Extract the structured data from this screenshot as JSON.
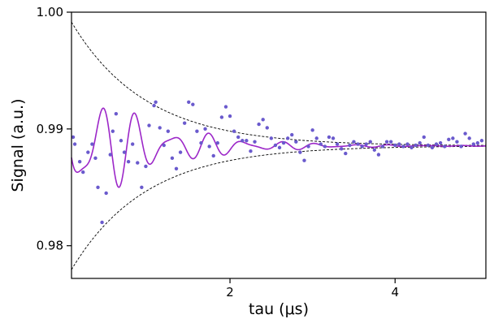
{
  "chart_data": {
    "type": "scatter",
    "title": "",
    "xlabel": "tau (μs)",
    "ylabel": "Signal (a.u.)",
    "xlim": [
      0.08,
      5.1
    ],
    "ylim": [
      0.9772,
      1.0
    ],
    "x_ticks": [
      {
        "value": 2,
        "label": "2"
      },
      {
        "value": 4,
        "label": "4"
      }
    ],
    "y_ticks": [
      {
        "value": 0.98,
        "label": "0.98"
      },
      {
        "value": 0.99,
        "label": "0.99"
      },
      {
        "value": 1.0,
        "label": "1.00"
      }
    ],
    "grid": false,
    "legend": "none",
    "colors": {
      "points": "#6a5acd",
      "fit_line": "#9c27c8",
      "envelope": "#000000"
    },
    "envelope": {
      "center": 0.98855,
      "amplitude_at_x0": 0.0106,
      "decay_time_us": 0.9
    },
    "fit_model": {
      "offset": 0.98855,
      "components": [
        {
          "amp": 0.0046,
          "freq_mhz": 2.28,
          "phase_rad": 0.2
        },
        {
          "amp": 0.0023,
          "freq_mhz": 3.25,
          "phase_rad": 2.0
        }
      ],
      "decay_time_us": 0.9
    },
    "series": [
      {
        "values": [
          [
            0.1,
            0.9893
          ],
          [
            0.12,
            0.9887
          ],
          [
            0.18,
            0.9872
          ],
          [
            0.22,
            0.9863
          ],
          [
            0.28,
            0.988
          ],
          [
            0.33,
            0.9887
          ],
          [
            0.37,
            0.9875
          ],
          [
            0.4,
            0.985
          ],
          [
            0.45,
            0.982
          ],
          [
            0.5,
            0.9845
          ],
          [
            0.55,
            0.9878
          ],
          [
            0.58,
            0.9898
          ],
          [
            0.62,
            0.9913
          ],
          [
            0.68,
            0.989
          ],
          [
            0.72,
            0.988
          ],
          [
            0.77,
            0.9872
          ],
          [
            0.82,
            0.9887
          ],
          [
            0.88,
            0.9871
          ],
          [
            0.93,
            0.985
          ],
          [
            0.98,
            0.9868
          ],
          [
            1.02,
            0.9903
          ],
          [
            1.08,
            0.992
          ],
          [
            1.1,
            0.9923
          ],
          [
            1.15,
            0.9901
          ],
          [
            1.2,
            0.9886
          ],
          [
            1.25,
            0.9898
          ],
          [
            1.3,
            0.9875
          ],
          [
            1.35,
            0.9866
          ],
          [
            1.4,
            0.988
          ],
          [
            1.45,
            0.9905
          ],
          [
            1.5,
            0.9923
          ],
          [
            1.55,
            0.9921
          ],
          [
            1.6,
            0.9898
          ],
          [
            1.65,
            0.9888
          ],
          [
            1.7,
            0.99
          ],
          [
            1.75,
            0.9885
          ],
          [
            1.8,
            0.9877
          ],
          [
            1.85,
            0.9888
          ],
          [
            1.9,
            0.991
          ],
          [
            1.95,
            0.9919
          ],
          [
            2.0,
            0.9911
          ],
          [
            2.05,
            0.9898
          ],
          [
            2.1,
            0.9893
          ],
          [
            2.15,
            0.989
          ],
          [
            2.2,
            0.989
          ],
          [
            2.25,
            0.9881
          ],
          [
            2.3,
            0.9889
          ],
          [
            2.35,
            0.9904
          ],
          [
            2.4,
            0.9908
          ],
          [
            2.45,
            0.9901
          ],
          [
            2.5,
            0.9892
          ],
          [
            2.55,
            0.9886
          ],
          [
            2.6,
            0.9884
          ],
          [
            2.65,
            0.9888
          ],
          [
            2.7,
            0.9892
          ],
          [
            2.75,
            0.9895
          ],
          [
            2.8,
            0.9889
          ],
          [
            2.85,
            0.988
          ],
          [
            2.9,
            0.9873
          ],
          [
            2.95,
            0.9885
          ],
          [
            3.0,
            0.9899
          ],
          [
            3.05,
            0.9892
          ],
          [
            3.1,
            0.9887
          ],
          [
            3.15,
            0.9885
          ],
          [
            3.2,
            0.9893
          ],
          [
            3.25,
            0.9892
          ],
          [
            3.3,
            0.9887
          ],
          [
            3.35,
            0.9883
          ],
          [
            3.4,
            0.9879
          ],
          [
            3.45,
            0.9886
          ],
          [
            3.5,
            0.9889
          ],
          [
            3.55,
            0.9887
          ],
          [
            3.6,
            0.9885
          ],
          [
            3.65,
            0.9887
          ],
          [
            3.7,
            0.9889
          ],
          [
            3.75,
            0.9882
          ],
          [
            3.8,
            0.9878
          ],
          [
            3.85,
            0.9885
          ],
          [
            3.9,
            0.9889
          ],
          [
            3.95,
            0.9889
          ],
          [
            4.0,
            0.9886
          ],
          [
            4.05,
            0.9887
          ],
          [
            4.1,
            0.9885
          ],
          [
            4.15,
            0.9887
          ],
          [
            4.2,
            0.9884
          ],
          [
            4.25,
            0.9886
          ],
          [
            4.3,
            0.9888
          ],
          [
            4.35,
            0.9893
          ],
          [
            4.4,
            0.9886
          ],
          [
            4.45,
            0.9884
          ],
          [
            4.5,
            0.9887
          ],
          [
            4.55,
            0.9888
          ],
          [
            4.6,
            0.9885
          ],
          [
            4.65,
            0.9891
          ],
          [
            4.7,
            0.9892
          ],
          [
            4.75,
            0.9889
          ],
          [
            4.8,
            0.9885
          ],
          [
            4.85,
            0.9896
          ],
          [
            4.9,
            0.9892
          ],
          [
            4.95,
            0.9887
          ],
          [
            5.0,
            0.9888
          ],
          [
            5.05,
            0.989
          ]
        ]
      }
    ]
  }
}
